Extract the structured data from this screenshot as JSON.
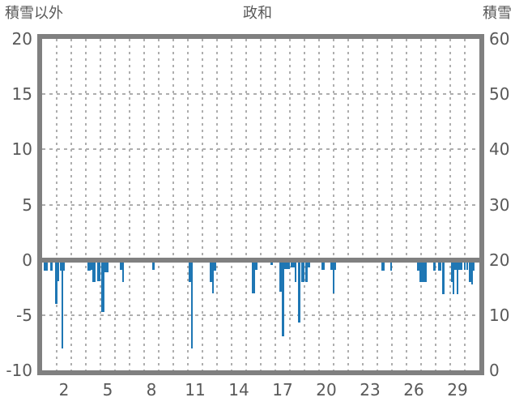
{
  "chart_data": {
    "type": "bar",
    "title": "政和",
    "left_axis": {
      "title": "積雪以外",
      "min": -10,
      "max": 20,
      "ticks": [
        20,
        15,
        10,
        5,
        0,
        -5,
        -10
      ]
    },
    "right_axis": {
      "title": "積雪",
      "min": 0,
      "max": 60,
      "ticks": [
        60,
        50,
        40,
        30,
        20,
        10,
        0
      ]
    },
    "x_axis": {
      "days": 30,
      "tick_labels": [
        2,
        5,
        8,
        11,
        14,
        17,
        20,
        23,
        26,
        29
      ]
    },
    "grid": {
      "h_values": [
        15,
        10,
        5,
        -5
      ],
      "v_every_day": true
    },
    "colors": {
      "bar": "#1f77b4",
      "spine": "#808080",
      "grid": "#aeaeae",
      "text": "#595959",
      "background": "#ffffff"
    },
    "series": [
      {
        "name": "積雪以外",
        "axis": "left",
        "unit_note": "bars given as [day_start, day_end, value]; day positions fractional (1-30)",
        "bars": [
          [
            0.62,
            0.88,
            -1.0
          ],
          [
            1.03,
            1.21,
            -1.0
          ],
          [
            1.39,
            1.54,
            -4.0
          ],
          [
            1.54,
            1.68,
            -1.9
          ],
          [
            1.74,
            1.83,
            -1.0
          ],
          [
            1.83,
            1.97,
            -8.0
          ],
          [
            1.97,
            2.07,
            -1.0
          ],
          [
            3.63,
            3.81,
            -1.0
          ],
          [
            3.81,
            3.95,
            -0.9
          ],
          [
            3.95,
            4.16,
            -2.0
          ],
          [
            4.27,
            4.49,
            -1.9
          ],
          [
            4.57,
            4.8,
            -4.7
          ],
          [
            4.8,
            5.04,
            -1.1
          ],
          [
            5.82,
            5.98,
            -0.9
          ],
          [
            5.98,
            6.13,
            -2.0
          ],
          [
            8.05,
            8.2,
            -0.9
          ],
          [
            10.54,
            10.7,
            -2.0
          ],
          [
            10.7,
            10.86,
            -8.0
          ],
          [
            12.0,
            12.14,
            -2.0
          ],
          [
            12.14,
            12.3,
            -3.0
          ],
          [
            12.3,
            12.44,
            -1.0
          ],
          [
            14.89,
            15.11,
            -3.0
          ],
          [
            15.11,
            15.26,
            -0.9
          ],
          [
            16.18,
            16.32,
            -0.5
          ],
          [
            16.76,
            16.95,
            -2.9
          ],
          [
            16.95,
            17.12,
            -6.9
          ],
          [
            17.12,
            17.48,
            -0.8
          ],
          [
            17.55,
            17.81,
            -0.7
          ],
          [
            17.81,
            17.97,
            -2.0
          ],
          [
            18.05,
            18.24,
            -5.7
          ],
          [
            18.25,
            18.49,
            -2.0
          ],
          [
            18.55,
            18.73,
            -2.0
          ],
          [
            18.73,
            18.88,
            -0.7
          ],
          [
            19.69,
            19.87,
            -0.9
          ],
          [
            20.3,
            20.43,
            -0.9
          ],
          [
            20.43,
            20.58,
            -3.0
          ],
          [
            20.58,
            20.67,
            -0.9
          ],
          [
            23.79,
            23.99,
            -1.0
          ],
          [
            24.38,
            24.52,
            -1.0
          ],
          [
            26.22,
            26.39,
            -1.0
          ],
          [
            26.39,
            26.64,
            -2.0
          ],
          [
            26.64,
            26.89,
            -2.0
          ],
          [
            27.33,
            27.49,
            -1.0
          ],
          [
            27.66,
            27.88,
            -1.0
          ],
          [
            27.94,
            28.1,
            -3.1
          ],
          [
            28.55,
            28.66,
            -2.0
          ],
          [
            28.66,
            28.79,
            -3.1
          ],
          [
            28.79,
            28.93,
            -0.9
          ],
          [
            28.93,
            29.04,
            -3.1
          ],
          [
            29.04,
            29.36,
            -0.9
          ],
          [
            29.43,
            29.54,
            -0.9
          ],
          [
            29.6,
            29.71,
            -0.9
          ],
          [
            29.76,
            29.93,
            -2.0
          ],
          [
            29.93,
            30.04,
            -2.2
          ],
          [
            30.04,
            30.15,
            -1.0
          ]
        ]
      }
    ]
  }
}
